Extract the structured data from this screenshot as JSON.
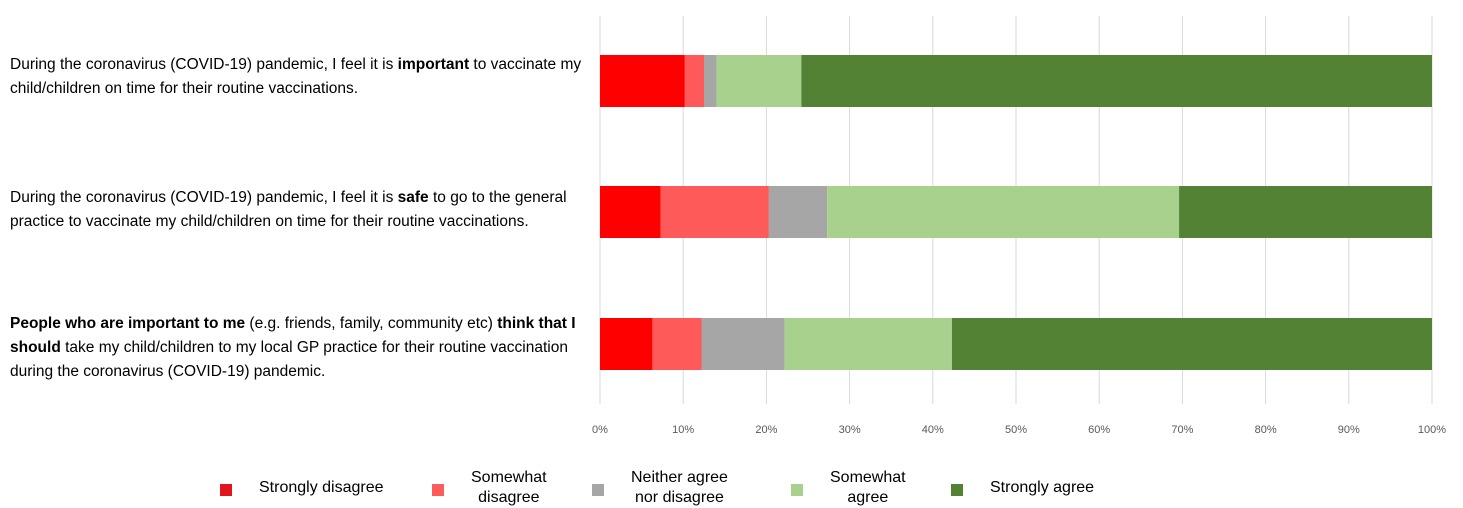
{
  "chart_data": {
    "type": "bar",
    "orientation": "horizontal",
    "stacked": "100%",
    "categories": [
      {
        "parts": [
          {
            "text": "During the coronavirus (COVID-19) pandemic, I feel it is ",
            "bold": false
          },
          {
            "text": "important",
            "bold": true
          },
          {
            "text": " to vaccinate my child/children on time for their routine vaccinations.",
            "bold": false
          }
        ]
      },
      {
        "parts": [
          {
            "text": "During the coronavirus (COVID-19) pandemic, I feel it is ",
            "bold": false
          },
          {
            "text": "safe",
            "bold": true
          },
          {
            "text": " to go to the general practice to vaccinate my child/children on time for their routine vaccinations.",
            "bold": false
          }
        ]
      },
      {
        "parts": [
          {
            "text": "People who are important to me",
            "bold": true
          },
          {
            "text": " (e.g. friends, family, community etc) ",
            "bold": false
          },
          {
            "text": "think that I should",
            "bold": true
          },
          {
            "text": " take my child/children to my local GP practice for their routine vaccination during the coronavirus (COVID-19) pandemic.",
            "bold": false
          }
        ]
      }
    ],
    "series": [
      {
        "name": "Strongly disagree",
        "color": "#ff0000",
        "values": [
          10.2,
          7.3,
          6.3
        ]
      },
      {
        "name": "Somewhat disagree",
        "color": "#ff5a5a",
        "values": [
          2.3,
          13.0,
          5.9
        ]
      },
      {
        "name": "Neither agree nor disagree",
        "color": "#a6a6a6",
        "values": [
          1.5,
          7.0,
          10.0
        ]
      },
      {
        "name": "Somewhat agree",
        "color": "#a9d18e",
        "values": [
          10.2,
          42.3,
          20.1
        ]
      },
      {
        "name": "Strongly agree",
        "color": "#548235",
        "values": [
          75.8,
          30.4,
          57.7
        ]
      }
    ],
    "xlim": [
      0,
      100
    ],
    "x_ticks": [
      "0%",
      "10%",
      "20%",
      "30%",
      "40%",
      "50%",
      "60%",
      "70%",
      "80%",
      "90%",
      "100%"
    ],
    "grid": true,
    "legend_position": "bottom",
    "legend_labels": [
      "Strongly disagree",
      "Somewhat\ndisagree",
      "Neither agree\nnor disagree",
      "Somewhat\nagree",
      "Strongly agree"
    ],
    "legend_swatch_colors": [
      "#e0161a",
      "#ff5a5a",
      "#a6a6a6",
      "#a9d18e",
      "#548235"
    ]
  }
}
